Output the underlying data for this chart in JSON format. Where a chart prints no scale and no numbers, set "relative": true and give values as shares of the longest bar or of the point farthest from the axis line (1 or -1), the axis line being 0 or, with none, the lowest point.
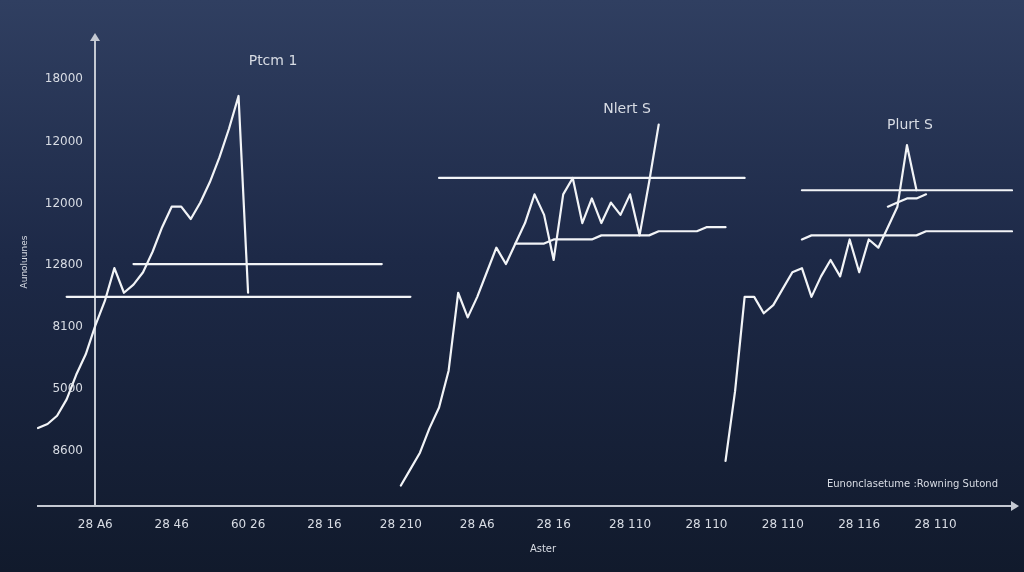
{
  "chart_data": {
    "type": "line",
    "relative": true,
    "xlabel": "Aster",
    "ylabel": "Aunoluunes",
    "annotations": [
      "Ptcm 1",
      "Nlert S",
      "Plurt S",
      "Eunonclasetume :Rowning Sutond",
      "18000",
      "12000",
      "12000",
      "12800",
      "8100",
      "5000",
      "8600"
    ],
    "categories": [
      null,
      null,
      null,
      null,
      null,
      null,
      "28 A6",
      null,
      null,
      null,
      null,
      null,
      null,
      null,
      "28 46",
      null,
      null,
      null,
      null,
      null,
      null,
      null,
      "60 26",
      null,
      null,
      null,
      null,
      null,
      null,
      null,
      "28 16",
      null,
      null,
      null,
      null,
      null,
      null,
      null,
      "28 210",
      null,
      null,
      null,
      null,
      null,
      null,
      null,
      "28 A6",
      null,
      null,
      null,
      null,
      null,
      null,
      null,
      "28 16",
      null,
      null,
      null,
      null,
      null,
      null,
      null,
      "28 110",
      null,
      null,
      null,
      null,
      null,
      null,
      null,
      "28 110",
      null,
      null,
      null,
      null,
      null,
      null,
      null,
      "28 110",
      null,
      null,
      null,
      null,
      null,
      null,
      null,
      "28 116",
      null,
      null,
      null,
      null,
      null,
      null,
      null,
      "28 110",
      null,
      null,
      null,
      null,
      null,
      null,
      null,
      null
    ],
    "marker": "none",
    "line_style": "solid",
    "series": [
      {
        "color": "#f2f4f7",
        "values": [
          0.19,
          0.2,
          0.22,
          0.26,
          0.32,
          0.37,
          0.44,
          0.5,
          0.58,
          0.52,
          0.54,
          0.57,
          0.62,
          0.68,
          0.73,
          0.73,
          0.7,
          0.74,
          0.79,
          0.85,
          0.92,
          1.0,
          0.52,
          null,
          null,
          null,
          null,
          null,
          null,
          null,
          null,
          null,
          null,
          null,
          null,
          null,
          null,
          null,
          0.05,
          0.09,
          0.13,
          0.19,
          0.24,
          0.33,
          0.52,
          0.46,
          0.51,
          0.57,
          0.63,
          0.59,
          0.64,
          0.69,
          0.76,
          0.71,
          0.6,
          0.76,
          0.8,
          0.69,
          0.75,
          0.69,
          0.74,
          0.71,
          0.76,
          0.66,
          0.79,
          0.93,
          null,
          null,
          null,
          null,
          null,
          null,
          0.11,
          0.28,
          0.51,
          0.51,
          0.47,
          0.49,
          0.53,
          0.57,
          0.58,
          0.51,
          0.56,
          0.6,
          0.56,
          0.65,
          0.57,
          0.65,
          0.63,
          0.68,
          0.73,
          0.88,
          0.77,
          null,
          null,
          null,
          null,
          null,
          null,
          null,
          null,
          null,
          null
        ]
      },
      {
        "color": "#f2f4f7",
        "values": [
          null,
          null,
          null,
          null,
          null,
          null,
          null,
          null,
          null,
          null,
          0.59,
          0.59,
          0.59,
          0.59,
          0.59,
          0.59,
          0.59,
          0.59,
          0.59,
          0.59,
          0.59,
          0.59,
          0.59,
          0.59,
          0.59,
          0.59,
          0.59,
          0.59,
          0.59,
          0.59,
          0.59,
          0.59,
          0.59,
          0.59,
          0.59,
          0.59,
          0.59,
          null,
          null,
          null,
          null,
          null,
          0.8,
          0.8,
          0.8,
          0.8,
          0.8,
          0.8,
          0.8,
          0.8,
          0.8,
          0.8,
          0.8,
          0.8,
          0.8,
          0.8,
          0.8,
          0.8,
          0.8,
          0.8,
          0.8,
          0.8,
          0.8,
          0.8,
          0.8,
          0.8,
          0.8,
          0.8,
          0.8,
          0.8,
          0.8,
          0.8,
          0.8,
          0.8,
          0.8,
          null,
          null,
          null,
          null,
          null,
          0.77,
          0.77,
          0.77,
          0.77,
          0.77,
          0.77,
          0.77,
          0.77,
          0.77,
          0.77,
          0.77,
          0.77,
          0.77,
          0.77,
          0.77,
          0.77,
          0.77,
          0.77,
          0.77,
          0.77,
          0.77,
          0.77,
          0.77
        ]
      },
      {
        "color": "#f2f4f7",
        "values": [
          null,
          null,
          null,
          0.51,
          0.51,
          0.51,
          0.51,
          0.51,
          0.51,
          0.51,
          0.51,
          0.51,
          0.51,
          0.51,
          0.51,
          0.51,
          0.51,
          0.51,
          0.51,
          0.51,
          0.51,
          0.51,
          0.51,
          0.51,
          0.51,
          0.51,
          0.51,
          0.51,
          0.51,
          0.51,
          0.51,
          0.51,
          0.51,
          0.51,
          0.51,
          0.51,
          0.51,
          0.51,
          0.51,
          0.51,
          null,
          null,
          null,
          null,
          null,
          null,
          null,
          null,
          null,
          null,
          0.64,
          0.64,
          0.64,
          0.64,
          0.65,
          0.65,
          0.65,
          0.65,
          0.65,
          0.66,
          0.66,
          0.66,
          0.66,
          0.66,
          0.66,
          0.67,
          0.67,
          0.67,
          0.67,
          0.67,
          0.68,
          0.68,
          0.68,
          null,
          null,
          null,
          null,
          null,
          null,
          null,
          0.65,
          0.66,
          0.66,
          0.66,
          0.66,
          0.66,
          0.66,
          0.66,
          0.66,
          0.66,
          0.66,
          0.66,
          0.66,
          0.67,
          0.67,
          0.67,
          0.67,
          0.67,
          0.67,
          0.67,
          0.67,
          0.67,
          0.67
        ]
      },
      {
        "color": "#f2f4f7",
        "values": [
          null,
          null,
          null,
          null,
          null,
          null,
          null,
          null,
          null,
          null,
          null,
          null,
          null,
          null,
          null,
          null,
          null,
          null,
          null,
          null,
          null,
          null,
          null,
          null,
          null,
          null,
          null,
          null,
          null,
          null,
          null,
          null,
          null,
          null,
          null,
          null,
          null,
          null,
          null,
          null,
          null,
          null,
          null,
          null,
          null,
          null,
          null,
          null,
          null,
          null,
          null,
          null,
          null,
          null,
          null,
          null,
          null,
          null,
          null,
          null,
          null,
          null,
          null,
          null,
          null,
          null,
          null,
          null,
          null,
          null,
          null,
          null,
          null,
          null,
          null,
          null,
          null,
          null,
          null,
          null,
          null,
          null,
          null,
          null,
          null,
          null,
          null,
          null,
          null,
          0.73,
          0.74,
          0.75,
          0.75,
          0.76,
          null,
          null,
          null,
          null,
          null,
          null,
          null,
          null,
          null
        ]
      }
    ]
  }
}
